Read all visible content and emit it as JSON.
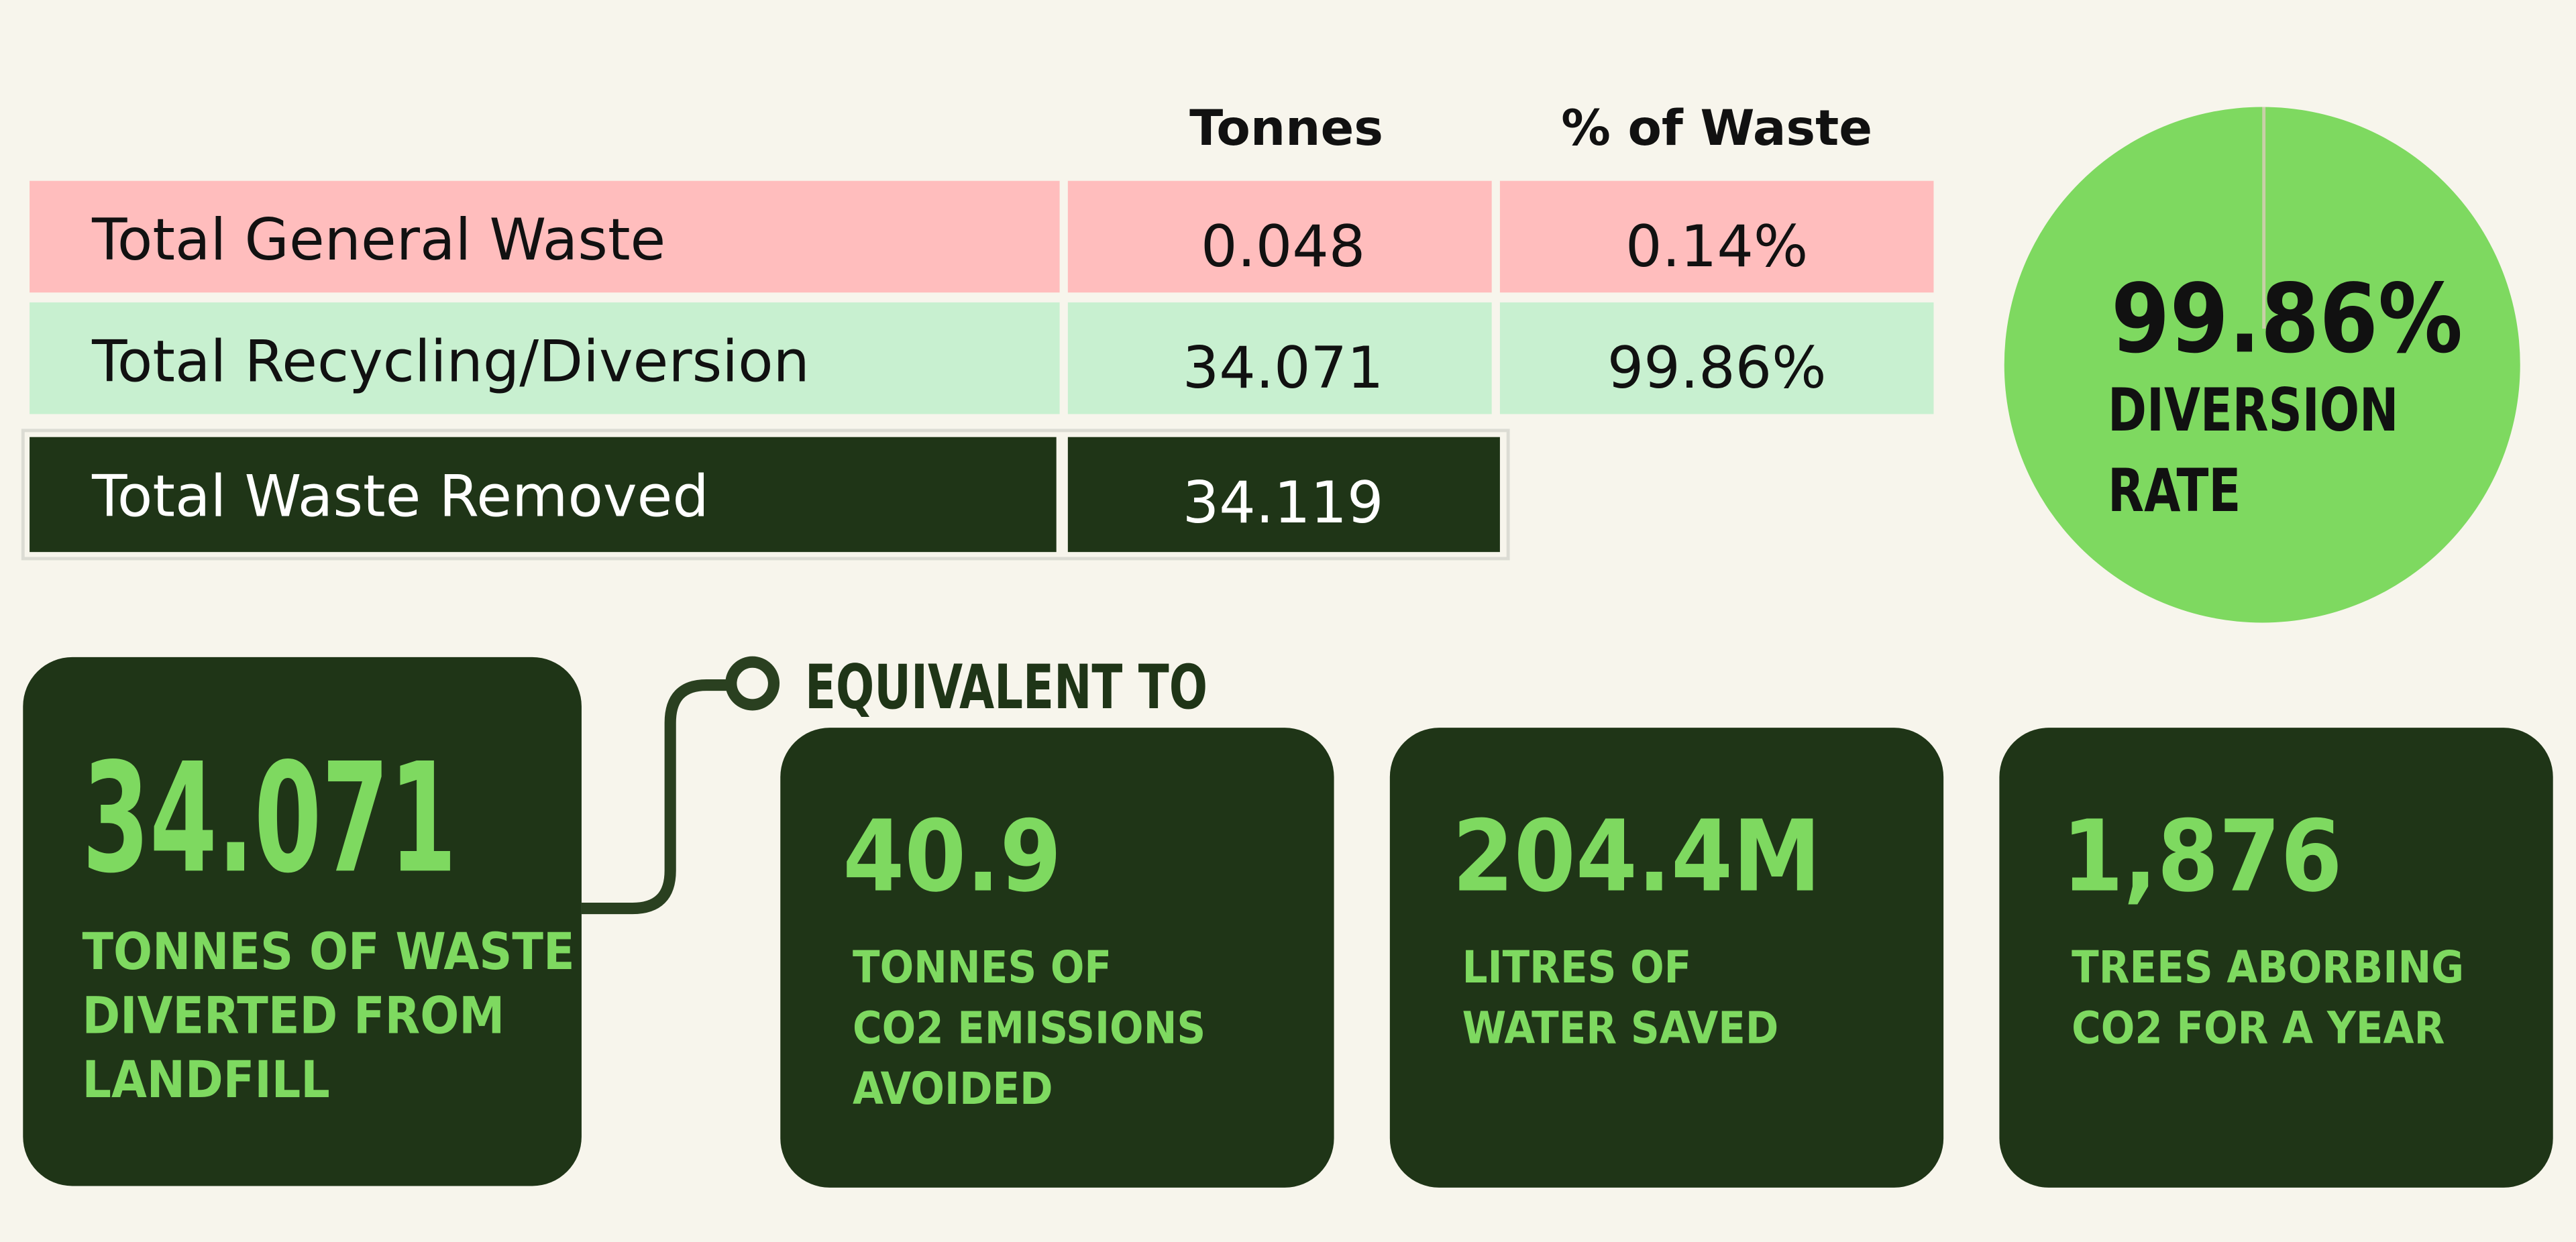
{
  "table": {
    "headers": [
      "Tonnes",
      "% of Waste"
    ],
    "rows": [
      [
        "Total General Waste",
        "0.048",
        "0.14%"
      ],
      [
        "Total Recycling/Diversion",
        "34.071",
        "99.86%"
      ],
      [
        "Total Waste Removed",
        "34.119"
      ]
    ]
  },
  "diversion": {
    "value": "99.86%",
    "label": [
      "DIVERSION",
      "RATE"
    ]
  },
  "main": {
    "value": "34.071",
    "label": [
      "TONNES OF WASTE",
      "DIVERTED FROM",
      "LANDFILL"
    ]
  },
  "equivalent_heading": "EQUIVALENT TO",
  "cards": [
    {
      "value": "40.9",
      "label": [
        "TONNES OF",
        "CO2 EMISSIONS",
        "AVOIDED"
      ]
    },
    {
      "value": "204.4M",
      "label": [
        "LITRES OF",
        "WATER SAVED"
      ]
    },
    {
      "value": "1,876",
      "label": [
        "TREES ABORBING",
        "CO2 FOR A YEAR"
      ]
    }
  ]
}
